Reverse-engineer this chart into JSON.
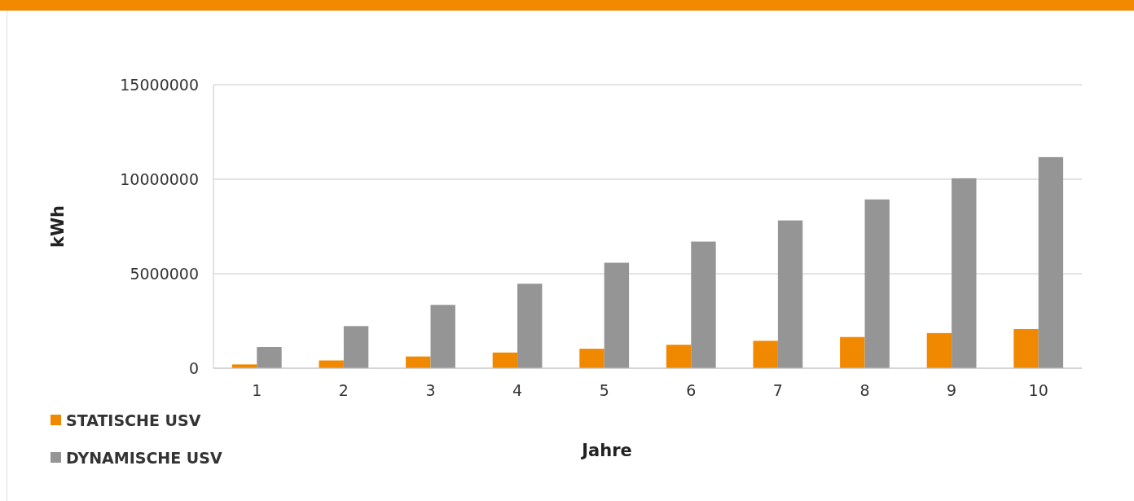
{
  "chart_data": {
    "type": "bar",
    "xlabel": "Jahre",
    "ylabel": "kWh",
    "categories": [
      "1",
      "2",
      "3",
      "4",
      "5",
      "6",
      "7",
      "8",
      "9",
      "10"
    ],
    "series": [
      {
        "name": "STATISCHE USV",
        "color": "#f08800",
        "values": [
          200000,
          410000,
          620000,
          830000,
          1030000,
          1240000,
          1450000,
          1650000,
          1860000,
          2070000
        ]
      },
      {
        "name": "DYNAMISCHE USV",
        "color": "#959595",
        "values": [
          1120000,
          2230000,
          3350000,
          4470000,
          5580000,
          6700000,
          7820000,
          8930000,
          10050000,
          11170000
        ]
      }
    ],
    "ylim": [
      0,
      15000000
    ],
    "yticks": [
      0,
      5000000,
      10000000,
      15000000
    ],
    "grid": "y",
    "legend": "bottom left"
  }
}
